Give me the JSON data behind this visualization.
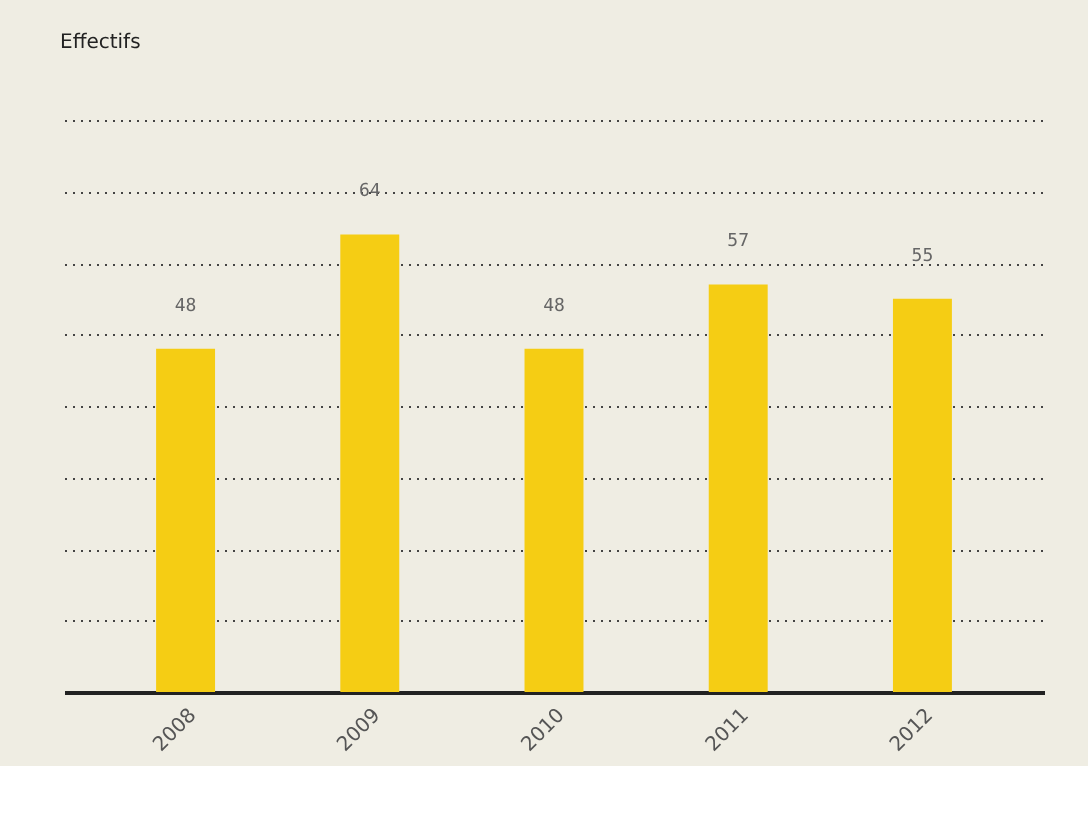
{
  "chart_data": {
    "type": "bar",
    "title": "Effectifs",
    "categories": [
      "2008",
      "2009",
      "2010",
      "2011",
      "2012"
    ],
    "values": [
      48,
      64,
      48,
      57,
      55
    ],
    "color": "#f5cd14",
    "data_labels": true,
    "ylim": [
      0,
      80
    ],
    "yticks": [
      {
        "value": 10,
        "label": null
      },
      {
        "value": 20,
        "label": null
      },
      {
        "value": 30,
        "label": null
      },
      {
        "value": 40,
        "label": null
      },
      {
        "value": 50,
        "label": null
      },
      {
        "value": 60,
        "label": null
      },
      {
        "value": 70,
        "label": null
      },
      {
        "value": 80,
        "label": null
      }
    ],
    "grid": "y",
    "tick_labels": "x"
  }
}
